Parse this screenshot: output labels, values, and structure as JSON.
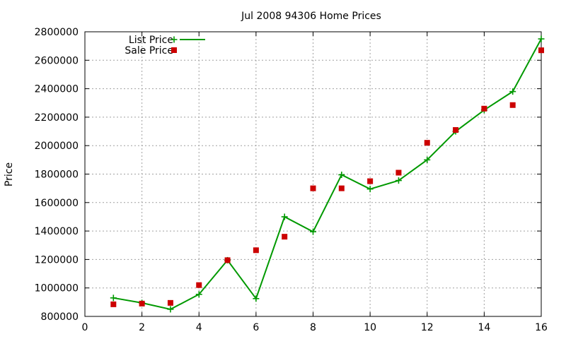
{
  "chart_data": {
    "type": "line",
    "title": "Jul 2008 94306 Home Prices",
    "xlabel": "",
    "ylabel": "Price",
    "xlim": [
      0,
      16
    ],
    "ylim": [
      800000,
      2800000
    ],
    "xticks": [
      "0",
      "2",
      "4",
      "6",
      "8",
      "10",
      "12",
      "14",
      "16"
    ],
    "yticks": [
      "800000",
      "1000000",
      "1200000",
      "1400000",
      "1600000",
      "1800000",
      "2000000",
      "2200000",
      "2400000",
      "2600000",
      "2800000"
    ],
    "grid": true,
    "legend_position": "top-left",
    "series": [
      {
        "name": "List Price",
        "style": "lines+points",
        "color": "#009900",
        "x": [
          1,
          2,
          3,
          4,
          5,
          6,
          7,
          8,
          9,
          10,
          11,
          12,
          13,
          14,
          15,
          16
        ],
        "y": [
          930000,
          895000,
          850000,
          955000,
          1195000,
          925000,
          1500000,
          1395000,
          1795000,
          1695000,
          1755000,
          1900000,
          2100000,
          2250000,
          2380000,
          2750000
        ]
      },
      {
        "name": "Sale Price",
        "style": "points",
        "color": "#cc0000",
        "x": [
          1,
          2,
          3,
          4,
          5,
          6,
          7,
          8,
          9,
          10,
          11,
          12,
          13,
          14,
          15,
          16
        ],
        "y": [
          885000,
          890000,
          895000,
          1020000,
          1195000,
          1265000,
          1360000,
          1700000,
          1700000,
          1750000,
          1810000,
          2020000,
          2110000,
          2260000,
          2285000,
          2670000
        ]
      }
    ]
  }
}
